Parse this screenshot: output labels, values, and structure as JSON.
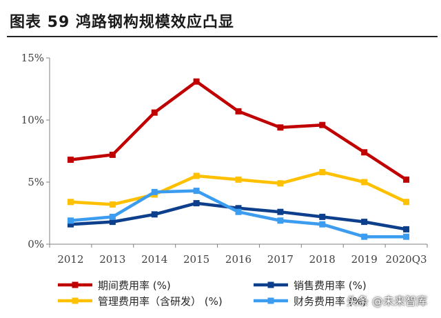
{
  "figure": {
    "title": "图表 59  鸿路钢构规模效应凸显"
  },
  "watermark": "头条 @未来智库",
  "chart_data": {
    "type": "line",
    "title": "",
    "xlabel": "",
    "ylabel": "",
    "categories": [
      "2012",
      "2013",
      "2014",
      "2015",
      "2016",
      "2017",
      "2018",
      "2019",
      "2020Q3"
    ],
    "ylim": [
      0,
      15
    ],
    "yticks": [
      0,
      5,
      10,
      15
    ],
    "ytick_labels": [
      "0%",
      "5%",
      "10%",
      "15%"
    ],
    "grid": false,
    "legend_position": "bottom",
    "series": [
      {
        "name": "期间费用率 (%)",
        "color": "#c00000",
        "values": [
          6.8,
          7.2,
          10.6,
          13.1,
          10.7,
          9.4,
          9.6,
          7.4,
          5.2
        ]
      },
      {
        "name": "销售费用率 (%)",
        "color": "#0d3f8c",
        "values": [
          1.6,
          1.8,
          2.4,
          3.3,
          2.9,
          2.6,
          2.2,
          1.8,
          1.2
        ]
      },
      {
        "name": "管理费用率（含研发） (%)",
        "color": "#ffc000",
        "values": [
          3.4,
          3.2,
          4.0,
          5.5,
          5.2,
          4.9,
          5.8,
          5.0,
          3.4
        ]
      },
      {
        "name": "财务费用率 (%)",
        "color": "#3c9cf0",
        "values": [
          1.9,
          2.2,
          4.2,
          4.3,
          2.6,
          1.9,
          1.6,
          0.6,
          0.6
        ]
      }
    ]
  }
}
